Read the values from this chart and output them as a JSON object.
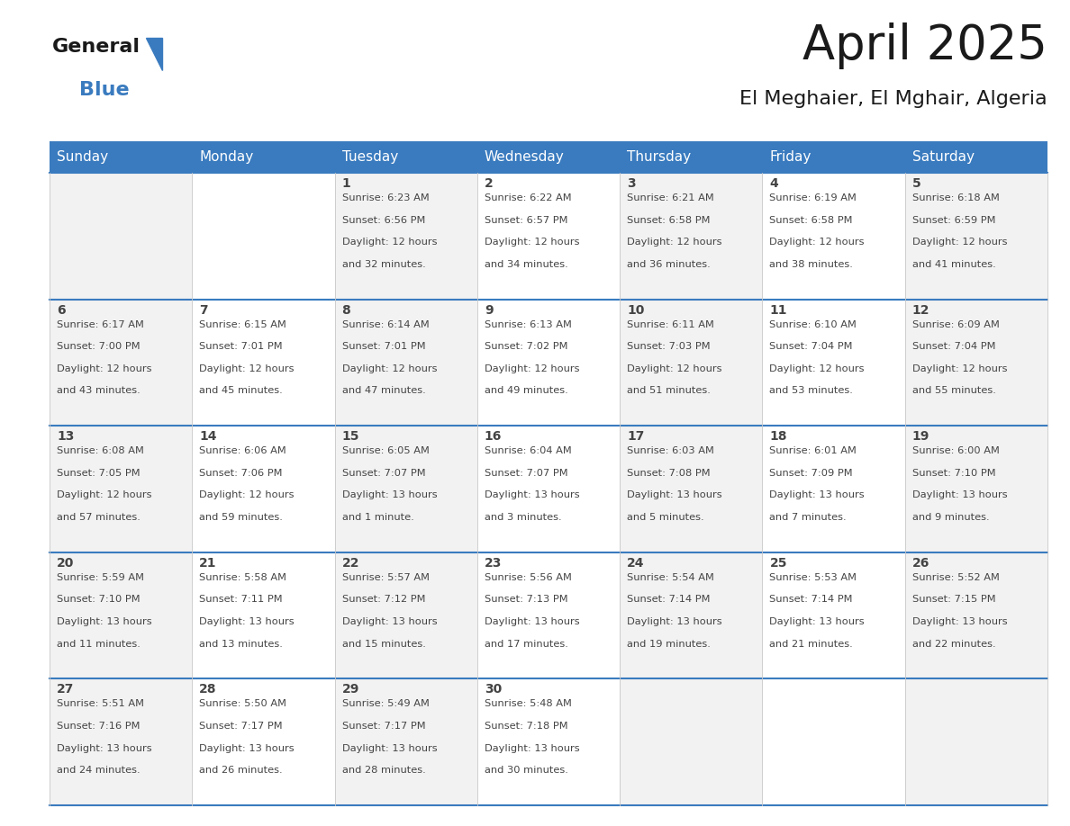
{
  "title": "April 2025",
  "subtitle": "El Meghaier, El Mghair, Algeria",
  "header_color": "#3a7bbf",
  "header_text_color": "#ffffff",
  "day_names": [
    "Sunday",
    "Monday",
    "Tuesday",
    "Wednesday",
    "Thursday",
    "Friday",
    "Saturday"
  ],
  "bg_color": "#ffffff",
  "border_color": "#3a7bbf",
  "text_color": "#444444",
  "logo_general_color": "#1a1a1a",
  "logo_blue_color": "#3a7bbf",
  "title_color": "#1a1a1a",
  "days": [
    {
      "day": 1,
      "col": 2,
      "row": 0,
      "sunrise": "6:23 AM",
      "sunset": "6:56 PM",
      "daylight": "12 hours and 32 minutes."
    },
    {
      "day": 2,
      "col": 3,
      "row": 0,
      "sunrise": "6:22 AM",
      "sunset": "6:57 PM",
      "daylight": "12 hours and 34 minutes."
    },
    {
      "day": 3,
      "col": 4,
      "row": 0,
      "sunrise": "6:21 AM",
      "sunset": "6:58 PM",
      "daylight": "12 hours and 36 minutes."
    },
    {
      "day": 4,
      "col": 5,
      "row": 0,
      "sunrise": "6:19 AM",
      "sunset": "6:58 PM",
      "daylight": "12 hours and 38 minutes."
    },
    {
      "day": 5,
      "col": 6,
      "row": 0,
      "sunrise": "6:18 AM",
      "sunset": "6:59 PM",
      "daylight": "12 hours and 41 minutes."
    },
    {
      "day": 6,
      "col": 0,
      "row": 1,
      "sunrise": "6:17 AM",
      "sunset": "7:00 PM",
      "daylight": "12 hours and 43 minutes."
    },
    {
      "day": 7,
      "col": 1,
      "row": 1,
      "sunrise": "6:15 AM",
      "sunset": "7:01 PM",
      "daylight": "12 hours and 45 minutes."
    },
    {
      "day": 8,
      "col": 2,
      "row": 1,
      "sunrise": "6:14 AM",
      "sunset": "7:01 PM",
      "daylight": "12 hours and 47 minutes."
    },
    {
      "day": 9,
      "col": 3,
      "row": 1,
      "sunrise": "6:13 AM",
      "sunset": "7:02 PM",
      "daylight": "12 hours and 49 minutes."
    },
    {
      "day": 10,
      "col": 4,
      "row": 1,
      "sunrise": "6:11 AM",
      "sunset": "7:03 PM",
      "daylight": "12 hours and 51 minutes."
    },
    {
      "day": 11,
      "col": 5,
      "row": 1,
      "sunrise": "6:10 AM",
      "sunset": "7:04 PM",
      "daylight": "12 hours and 53 minutes."
    },
    {
      "day": 12,
      "col": 6,
      "row": 1,
      "sunrise": "6:09 AM",
      "sunset": "7:04 PM",
      "daylight": "12 hours and 55 minutes."
    },
    {
      "day": 13,
      "col": 0,
      "row": 2,
      "sunrise": "6:08 AM",
      "sunset": "7:05 PM",
      "daylight": "12 hours and 57 minutes."
    },
    {
      "day": 14,
      "col": 1,
      "row": 2,
      "sunrise": "6:06 AM",
      "sunset": "7:06 PM",
      "daylight": "12 hours and 59 minutes."
    },
    {
      "day": 15,
      "col": 2,
      "row": 2,
      "sunrise": "6:05 AM",
      "sunset": "7:07 PM",
      "daylight": "13 hours and 1 minute."
    },
    {
      "day": 16,
      "col": 3,
      "row": 2,
      "sunrise": "6:04 AM",
      "sunset": "7:07 PM",
      "daylight": "13 hours and 3 minutes."
    },
    {
      "day": 17,
      "col": 4,
      "row": 2,
      "sunrise": "6:03 AM",
      "sunset": "7:08 PM",
      "daylight": "13 hours and 5 minutes."
    },
    {
      "day": 18,
      "col": 5,
      "row": 2,
      "sunrise": "6:01 AM",
      "sunset": "7:09 PM",
      "daylight": "13 hours and 7 minutes."
    },
    {
      "day": 19,
      "col": 6,
      "row": 2,
      "sunrise": "6:00 AM",
      "sunset": "7:10 PM",
      "daylight": "13 hours and 9 minutes."
    },
    {
      "day": 20,
      "col": 0,
      "row": 3,
      "sunrise": "5:59 AM",
      "sunset": "7:10 PM",
      "daylight": "13 hours and 11 minutes."
    },
    {
      "day": 21,
      "col": 1,
      "row": 3,
      "sunrise": "5:58 AM",
      "sunset": "7:11 PM",
      "daylight": "13 hours and 13 minutes."
    },
    {
      "day": 22,
      "col": 2,
      "row": 3,
      "sunrise": "5:57 AM",
      "sunset": "7:12 PM",
      "daylight": "13 hours and 15 minutes."
    },
    {
      "day": 23,
      "col": 3,
      "row": 3,
      "sunrise": "5:56 AM",
      "sunset": "7:13 PM",
      "daylight": "13 hours and 17 minutes."
    },
    {
      "day": 24,
      "col": 4,
      "row": 3,
      "sunrise": "5:54 AM",
      "sunset": "7:14 PM",
      "daylight": "13 hours and 19 minutes."
    },
    {
      "day": 25,
      "col": 5,
      "row": 3,
      "sunrise": "5:53 AM",
      "sunset": "7:14 PM",
      "daylight": "13 hours and 21 minutes."
    },
    {
      "day": 26,
      "col": 6,
      "row": 3,
      "sunrise": "5:52 AM",
      "sunset": "7:15 PM",
      "daylight": "13 hours and 22 minutes."
    },
    {
      "day": 27,
      "col": 0,
      "row": 4,
      "sunrise": "5:51 AM",
      "sunset": "7:16 PM",
      "daylight": "13 hours and 24 minutes."
    },
    {
      "day": 28,
      "col": 1,
      "row": 4,
      "sunrise": "5:50 AM",
      "sunset": "7:17 PM",
      "daylight": "13 hours and 26 minutes."
    },
    {
      "day": 29,
      "col": 2,
      "row": 4,
      "sunrise": "5:49 AM",
      "sunset": "7:17 PM",
      "daylight": "13 hours and 28 minutes."
    },
    {
      "day": 30,
      "col": 3,
      "row": 4,
      "sunrise": "5:48 AM",
      "sunset": "7:18 PM",
      "daylight": "13 hours and 30 minutes."
    }
  ]
}
